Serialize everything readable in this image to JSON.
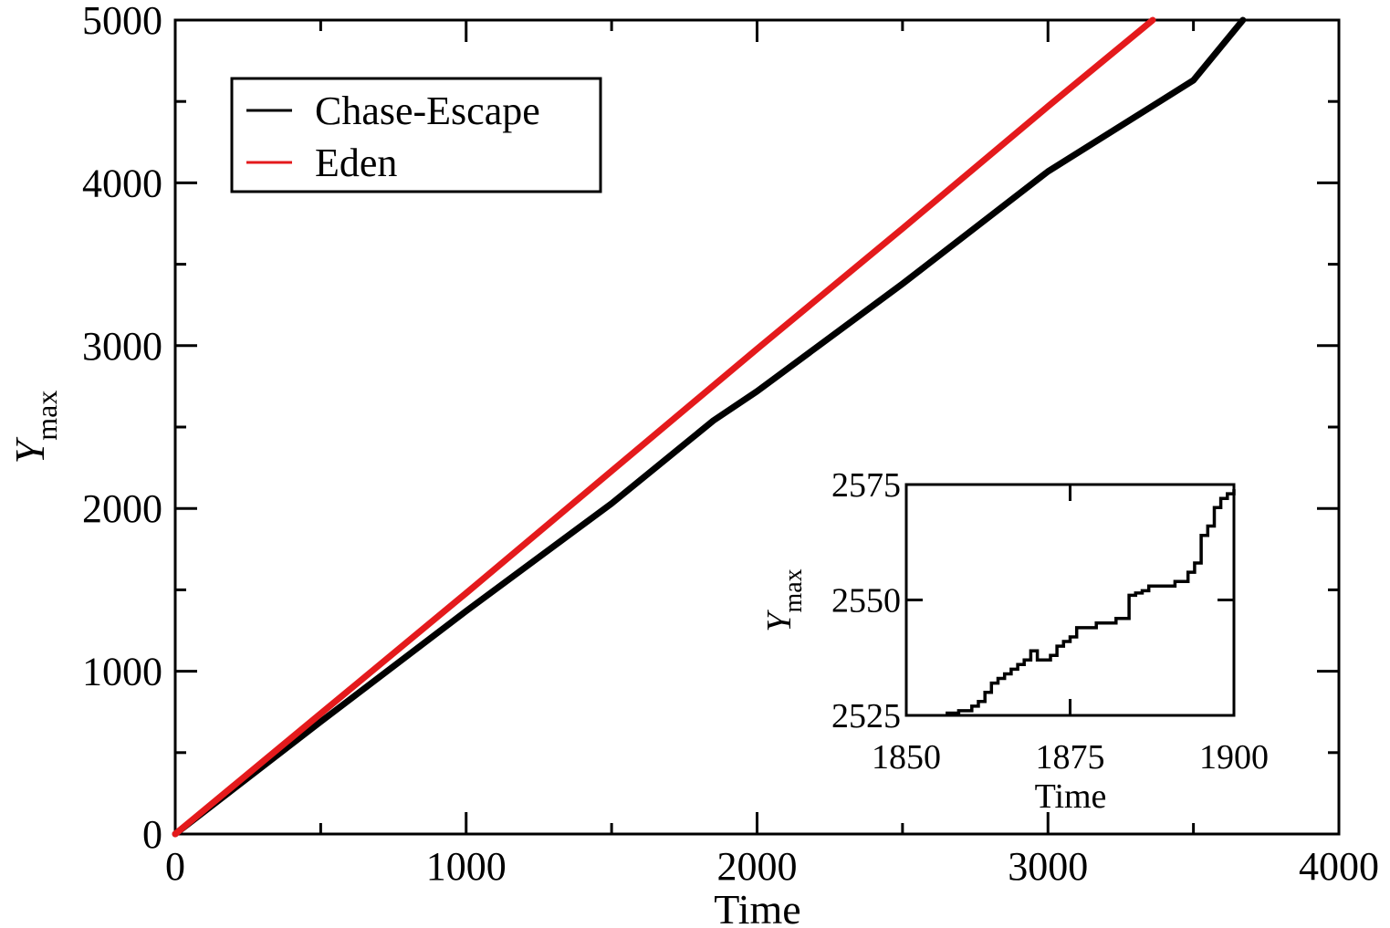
{
  "chart_data": [
    {
      "type": "line",
      "xlabel": "Time",
      "ylabel": {
        "base": "Y",
        "subscript": "max"
      },
      "xlim": [
        0,
        4000
      ],
      "ylim": [
        0,
        5000
      ],
      "x_ticks": [
        "0",
        "1000",
        "2000",
        "3000",
        "4000"
      ],
      "y_ticks": [
        "0",
        "1000",
        "2000",
        "3000",
        "4000",
        "5000"
      ],
      "minor_tick_step": {
        "x": 500,
        "y": 500
      },
      "grid": false,
      "legend": {
        "position": "top-left"
      },
      "series": [
        {
          "name": "Chase-Escape",
          "color": "#000000",
          "x": [
            0,
            500,
            1000,
            1500,
            1850,
            2000,
            2500,
            3000,
            3500,
            3670
          ],
          "y": [
            0,
            690,
            1370,
            2030,
            2540,
            2720,
            3380,
            4070,
            4630,
            5000
          ]
        },
        {
          "name": "Eden",
          "color": "#e41a1c",
          "x": [
            0,
            500,
            1000,
            1500,
            2000,
            2500,
            3000,
            3360
          ],
          "y": [
            0,
            740,
            1480,
            2230,
            2980,
            3720,
            4470,
            5000
          ]
        }
      ]
    },
    {
      "type": "line",
      "xlabel": "Time",
      "ylabel": {
        "base": "Y",
        "subscript": "max"
      },
      "xlim": [
        1850,
        1900
      ],
      "ylim": [
        2525,
        2575
      ],
      "x_ticks": [
        "1850",
        "1875",
        "1900"
      ],
      "y_ticks": [
        "2525",
        "2550",
        "2575"
      ],
      "grid": false,
      "series": [
        {
          "name": "",
          "color": "#000000",
          "step": true,
          "x": [
            1856,
            1858,
            1860,
            1861,
            1862,
            1863,
            1864,
            1865,
            1866,
            1867,
            1868,
            1869,
            1870,
            1872,
            1873,
            1874,
            1875,
            1876,
            1879,
            1882,
            1884,
            1885,
            1886,
            1887,
            1891,
            1893,
            1894,
            1895,
            1896,
            1897
          ],
          "y": [
            2525.5,
            2526,
            2527,
            2528,
            2530,
            2532,
            2533,
            2534,
            2535,
            2536,
            2537,
            2539,
            2537,
            2538,
            2540,
            2541,
            2542,
            2544,
            2545,
            2546,
            2551,
            2551.5,
            2552,
            2553,
            2554,
            2556,
            2558,
            2564,
            2566,
            2568
          ]
        }
      ],
      "series_tail": [
        1897,
        1898,
        1899,
        1900
      ],
      "series_tail_y": [
        2570,
        2572,
        2573,
        2574
      ]
    }
  ]
}
